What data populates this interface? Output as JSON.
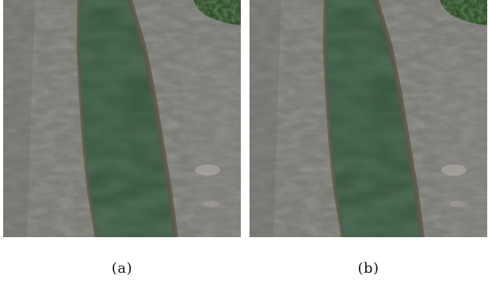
{
  "figure": {
    "panels": [
      {
        "id": "a",
        "caption": "(a)",
        "description_icon": "aerial-river-image",
        "speckle_noise": false
      },
      {
        "id": "b",
        "caption": "(b)",
        "description_icon": "aerial-river-image-noisy",
        "speckle_noise": true
      }
    ]
  },
  "colors": {
    "rock": "#7d7d78",
    "rock_dark": "#55554f",
    "rock_light": "#a6a39c",
    "river": "#3c5a43",
    "river_edge": "#5d5748",
    "vegetation": "#2f4a2a",
    "noise": "#e8f0d8"
  }
}
